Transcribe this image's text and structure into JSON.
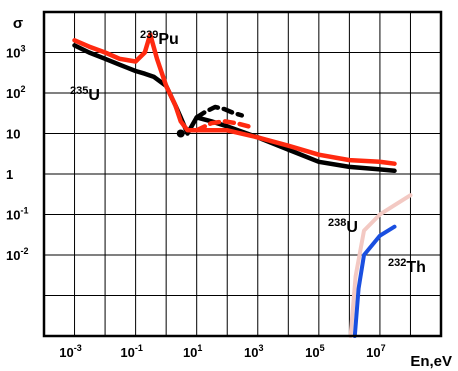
{
  "chart_data": {
    "type": "line",
    "title": "",
    "xlabel": "En,eV",
    "ylabel": "σ",
    "xscale": "log",
    "yscale": "log",
    "xlim": [
      0.0001,
      1000000000
    ],
    "ylim": [
      0.0001,
      10000
    ],
    "grid": true,
    "x_ticks": [
      {
        "base": "10",
        "exp": "-3",
        "value": 0.001
      },
      {
        "base": "10",
        "exp": "-1",
        "value": 0.1
      },
      {
        "base": "10",
        "exp": "1",
        "value": 10
      },
      {
        "base": "10",
        "exp": "3",
        "value": 1000
      },
      {
        "base": "10",
        "exp": "5",
        "value": 100000
      },
      {
        "base": "10",
        "exp": "7",
        "value": 10000000
      }
    ],
    "y_ticks": [
      {
        "base": "10",
        "exp": "3",
        "value": 1000
      },
      {
        "base": "10",
        "exp": "2",
        "value": 100
      },
      {
        "base": "10",
        "exp": "",
        "value": 10
      },
      {
        "base": "1",
        "exp": "",
        "value": 1
      },
      {
        "base": "10",
        "exp": "-1",
        "value": 0.1
      },
      {
        "base": "10",
        "exp": "-2",
        "value": 0.01
      }
    ],
    "series": [
      {
        "name": "235U",
        "label_main": "U",
        "label_sup": "235",
        "color": "#000000",
        "style": "solid",
        "x": [
          0.001,
          0.003,
          0.01,
          0.03,
          0.1,
          0.2,
          0.4,
          1,
          2,
          3,
          5,
          10,
          30,
          100,
          1000,
          10000,
          100000,
          1000000,
          10000000,
          30000000
        ],
        "y": [
          1500,
          1000,
          700,
          500,
          350,
          300,
          250,
          150,
          50,
          25,
          10,
          25,
          20,
          15,
          8,
          4,
          2,
          1.5,
          1.3,
          1.2
        ]
      },
      {
        "name": "235U dashed",
        "color": "#000000",
        "style": "dashed",
        "x": [
          10,
          20,
          40,
          80,
          160,
          300
        ],
        "y": [
          25,
          35,
          45,
          40,
          32,
          28
        ]
      },
      {
        "name": "239Pu",
        "label_main": "Pu",
        "label_sup": "239",
        "color": "#ff2a10",
        "style": "solid",
        "x": [
          0.001,
          0.003,
          0.01,
          0.03,
          0.1,
          0.2,
          0.3,
          0.5,
          1,
          2,
          3,
          5,
          10,
          30,
          100,
          1000,
          10000,
          100000,
          1000000,
          10000000,
          30000000
        ],
        "y": [
          2000,
          1400,
          1000,
          700,
          600,
          1000,
          2800,
          700,
          150,
          50,
          20,
          12,
          12,
          12,
          12,
          8,
          5,
          3,
          2.2,
          2.0,
          1.8
        ]
      },
      {
        "name": "239Pu dashed",
        "color": "#ff2a10",
        "style": "dashed",
        "x": [
          10,
          30,
          80,
          200,
          500
        ],
        "y": [
          12,
          18,
          20,
          18,
          15
        ]
      },
      {
        "name": "238U",
        "label_main": "U",
        "label_sup": "238",
        "color": "#f3c9c3",
        "style": "solid",
        "x": [
          1100000,
          1600000,
          3000000,
          10000000,
          30000000,
          100000000
        ],
        "y": [
          0.0001,
          0.003,
          0.04,
          0.1,
          0.17,
          0.3
        ]
      },
      {
        "name": "232Th",
        "label_main": "Th",
        "label_sup": "232",
        "color": "#1a4fe0",
        "style": "solid",
        "x": [
          1500000,
          2000000,
          3000000,
          10000000,
          30000000
        ],
        "y": [
          0.0001,
          0.0015,
          0.01,
          0.03,
          0.05
        ]
      }
    ],
    "black_dot": {
      "x": 3,
      "y": 10
    }
  }
}
